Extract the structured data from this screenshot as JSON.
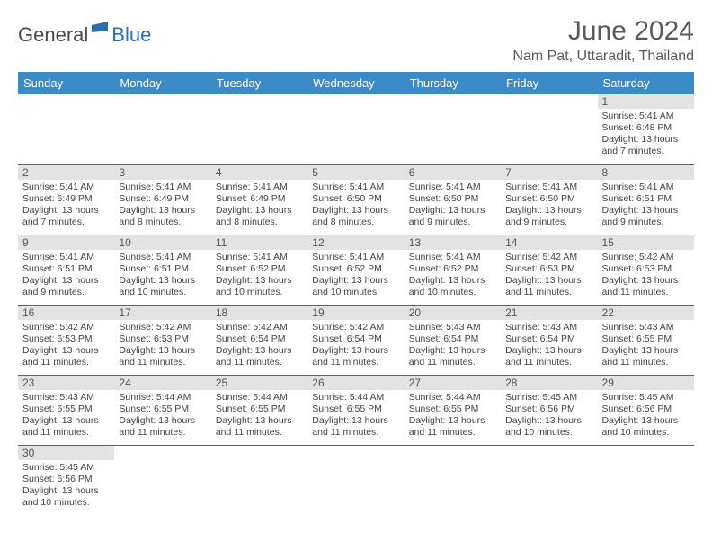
{
  "logo": {
    "part1": "General",
    "part2": "Blue"
  },
  "title": "June 2024",
  "location": "Nam Pat, Uttaradit, Thailand",
  "colors": {
    "header_bg": "#3b8bc8",
    "header_text": "#ffffff",
    "border": "#2b6fb0",
    "daynum_bg": "#e3e3e3",
    "logo_blue": "#2b6fb0",
    "logo_gray": "#4a4a4a"
  },
  "weekdays": [
    "Sunday",
    "Monday",
    "Tuesday",
    "Wednesday",
    "Thursday",
    "Friday",
    "Saturday"
  ],
  "weeks": [
    [
      null,
      null,
      null,
      null,
      null,
      null,
      {
        "n": "1",
        "sr": "5:41 AM",
        "ss": "6:48 PM",
        "dl": "13 hours and 7 minutes."
      }
    ],
    [
      {
        "n": "2",
        "sr": "5:41 AM",
        "ss": "6:49 PM",
        "dl": "13 hours and 7 minutes."
      },
      {
        "n": "3",
        "sr": "5:41 AM",
        "ss": "6:49 PM",
        "dl": "13 hours and 8 minutes."
      },
      {
        "n": "4",
        "sr": "5:41 AM",
        "ss": "6:49 PM",
        "dl": "13 hours and 8 minutes."
      },
      {
        "n": "5",
        "sr": "5:41 AM",
        "ss": "6:50 PM",
        "dl": "13 hours and 8 minutes."
      },
      {
        "n": "6",
        "sr": "5:41 AM",
        "ss": "6:50 PM",
        "dl": "13 hours and 9 minutes."
      },
      {
        "n": "7",
        "sr": "5:41 AM",
        "ss": "6:50 PM",
        "dl": "13 hours and 9 minutes."
      },
      {
        "n": "8",
        "sr": "5:41 AM",
        "ss": "6:51 PM",
        "dl": "13 hours and 9 minutes."
      }
    ],
    [
      {
        "n": "9",
        "sr": "5:41 AM",
        "ss": "6:51 PM",
        "dl": "13 hours and 9 minutes."
      },
      {
        "n": "10",
        "sr": "5:41 AM",
        "ss": "6:51 PM",
        "dl": "13 hours and 10 minutes."
      },
      {
        "n": "11",
        "sr": "5:41 AM",
        "ss": "6:52 PM",
        "dl": "13 hours and 10 minutes."
      },
      {
        "n": "12",
        "sr": "5:41 AM",
        "ss": "6:52 PM",
        "dl": "13 hours and 10 minutes."
      },
      {
        "n": "13",
        "sr": "5:41 AM",
        "ss": "6:52 PM",
        "dl": "13 hours and 10 minutes."
      },
      {
        "n": "14",
        "sr": "5:42 AM",
        "ss": "6:53 PM",
        "dl": "13 hours and 11 minutes."
      },
      {
        "n": "15",
        "sr": "5:42 AM",
        "ss": "6:53 PM",
        "dl": "13 hours and 11 minutes."
      }
    ],
    [
      {
        "n": "16",
        "sr": "5:42 AM",
        "ss": "6:53 PM",
        "dl": "13 hours and 11 minutes."
      },
      {
        "n": "17",
        "sr": "5:42 AM",
        "ss": "6:53 PM",
        "dl": "13 hours and 11 minutes."
      },
      {
        "n": "18",
        "sr": "5:42 AM",
        "ss": "6:54 PM",
        "dl": "13 hours and 11 minutes."
      },
      {
        "n": "19",
        "sr": "5:42 AM",
        "ss": "6:54 PM",
        "dl": "13 hours and 11 minutes."
      },
      {
        "n": "20",
        "sr": "5:43 AM",
        "ss": "6:54 PM",
        "dl": "13 hours and 11 minutes."
      },
      {
        "n": "21",
        "sr": "5:43 AM",
        "ss": "6:54 PM",
        "dl": "13 hours and 11 minutes."
      },
      {
        "n": "22",
        "sr": "5:43 AM",
        "ss": "6:55 PM",
        "dl": "13 hours and 11 minutes."
      }
    ],
    [
      {
        "n": "23",
        "sr": "5:43 AM",
        "ss": "6:55 PM",
        "dl": "13 hours and 11 minutes."
      },
      {
        "n": "24",
        "sr": "5:44 AM",
        "ss": "6:55 PM",
        "dl": "13 hours and 11 minutes."
      },
      {
        "n": "25",
        "sr": "5:44 AM",
        "ss": "6:55 PM",
        "dl": "13 hours and 11 minutes."
      },
      {
        "n": "26",
        "sr": "5:44 AM",
        "ss": "6:55 PM",
        "dl": "13 hours and 11 minutes."
      },
      {
        "n": "27",
        "sr": "5:44 AM",
        "ss": "6:55 PM",
        "dl": "13 hours and 11 minutes."
      },
      {
        "n": "28",
        "sr": "5:45 AM",
        "ss": "6:56 PM",
        "dl": "13 hours and 10 minutes."
      },
      {
        "n": "29",
        "sr": "5:45 AM",
        "ss": "6:56 PM",
        "dl": "13 hours and 10 minutes."
      }
    ],
    [
      {
        "n": "30",
        "sr": "5:45 AM",
        "ss": "6:56 PM",
        "dl": "13 hours and 10 minutes."
      },
      null,
      null,
      null,
      null,
      null,
      null
    ]
  ],
  "labels": {
    "sunrise": "Sunrise:",
    "sunset": "Sunset:",
    "daylight": "Daylight:"
  }
}
